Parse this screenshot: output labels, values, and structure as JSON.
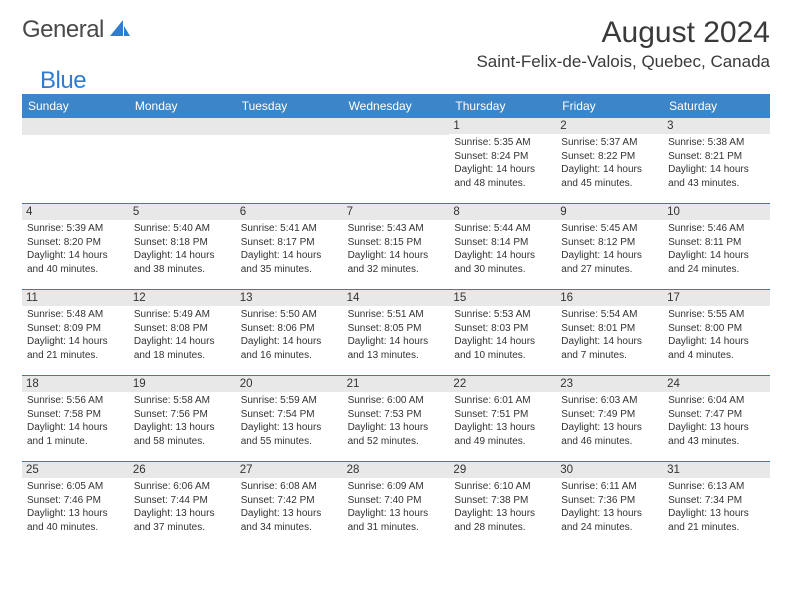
{
  "logo": {
    "general": "General",
    "blue": "Blue"
  },
  "title": "August 2024",
  "location": "Saint-Felix-de-Valois, Quebec, Canada",
  "colors": {
    "header_bg": "#3c85c8",
    "header_fg": "#ffffff",
    "daynum_bg": "#e8e8e8",
    "separator": "#2f7dd0",
    "logo_blue": "#2f7dd0",
    "text": "#333333"
  },
  "day_headers": [
    "Sunday",
    "Monday",
    "Tuesday",
    "Wednesday",
    "Thursday",
    "Friday",
    "Saturday"
  ],
  "weeks": [
    [
      null,
      null,
      null,
      null,
      {
        "n": "1",
        "sr": "5:35 AM",
        "ss": "8:24 PM",
        "dl": "14 hours and 48 minutes."
      },
      {
        "n": "2",
        "sr": "5:37 AM",
        "ss": "8:22 PM",
        "dl": "14 hours and 45 minutes."
      },
      {
        "n": "3",
        "sr": "5:38 AM",
        "ss": "8:21 PM",
        "dl": "14 hours and 43 minutes."
      }
    ],
    [
      {
        "n": "4",
        "sr": "5:39 AM",
        "ss": "8:20 PM",
        "dl": "14 hours and 40 minutes."
      },
      {
        "n": "5",
        "sr": "5:40 AM",
        "ss": "8:18 PM",
        "dl": "14 hours and 38 minutes."
      },
      {
        "n": "6",
        "sr": "5:41 AM",
        "ss": "8:17 PM",
        "dl": "14 hours and 35 minutes."
      },
      {
        "n": "7",
        "sr": "5:43 AM",
        "ss": "8:15 PM",
        "dl": "14 hours and 32 minutes."
      },
      {
        "n": "8",
        "sr": "5:44 AM",
        "ss": "8:14 PM",
        "dl": "14 hours and 30 minutes."
      },
      {
        "n": "9",
        "sr": "5:45 AM",
        "ss": "8:12 PM",
        "dl": "14 hours and 27 minutes."
      },
      {
        "n": "10",
        "sr": "5:46 AM",
        "ss": "8:11 PM",
        "dl": "14 hours and 24 minutes."
      }
    ],
    [
      {
        "n": "11",
        "sr": "5:48 AM",
        "ss": "8:09 PM",
        "dl": "14 hours and 21 minutes."
      },
      {
        "n": "12",
        "sr": "5:49 AM",
        "ss": "8:08 PM",
        "dl": "14 hours and 18 minutes."
      },
      {
        "n": "13",
        "sr": "5:50 AM",
        "ss": "8:06 PM",
        "dl": "14 hours and 16 minutes."
      },
      {
        "n": "14",
        "sr": "5:51 AM",
        "ss": "8:05 PM",
        "dl": "14 hours and 13 minutes."
      },
      {
        "n": "15",
        "sr": "5:53 AM",
        "ss": "8:03 PM",
        "dl": "14 hours and 10 minutes."
      },
      {
        "n": "16",
        "sr": "5:54 AM",
        "ss": "8:01 PM",
        "dl": "14 hours and 7 minutes."
      },
      {
        "n": "17",
        "sr": "5:55 AM",
        "ss": "8:00 PM",
        "dl": "14 hours and 4 minutes."
      }
    ],
    [
      {
        "n": "18",
        "sr": "5:56 AM",
        "ss": "7:58 PM",
        "dl": "14 hours and 1 minute."
      },
      {
        "n": "19",
        "sr": "5:58 AM",
        "ss": "7:56 PM",
        "dl": "13 hours and 58 minutes."
      },
      {
        "n": "20",
        "sr": "5:59 AM",
        "ss": "7:54 PM",
        "dl": "13 hours and 55 minutes."
      },
      {
        "n": "21",
        "sr": "6:00 AM",
        "ss": "7:53 PM",
        "dl": "13 hours and 52 minutes."
      },
      {
        "n": "22",
        "sr": "6:01 AM",
        "ss": "7:51 PM",
        "dl": "13 hours and 49 minutes."
      },
      {
        "n": "23",
        "sr": "6:03 AM",
        "ss": "7:49 PM",
        "dl": "13 hours and 46 minutes."
      },
      {
        "n": "24",
        "sr": "6:04 AM",
        "ss": "7:47 PM",
        "dl": "13 hours and 43 minutes."
      }
    ],
    [
      {
        "n": "25",
        "sr": "6:05 AM",
        "ss": "7:46 PM",
        "dl": "13 hours and 40 minutes."
      },
      {
        "n": "26",
        "sr": "6:06 AM",
        "ss": "7:44 PM",
        "dl": "13 hours and 37 minutes."
      },
      {
        "n": "27",
        "sr": "6:08 AM",
        "ss": "7:42 PM",
        "dl": "13 hours and 34 minutes."
      },
      {
        "n": "28",
        "sr": "6:09 AM",
        "ss": "7:40 PM",
        "dl": "13 hours and 31 minutes."
      },
      {
        "n": "29",
        "sr": "6:10 AM",
        "ss": "7:38 PM",
        "dl": "13 hours and 28 minutes."
      },
      {
        "n": "30",
        "sr": "6:11 AM",
        "ss": "7:36 PM",
        "dl": "13 hours and 24 minutes."
      },
      {
        "n": "31",
        "sr": "6:13 AM",
        "ss": "7:34 PM",
        "dl": "13 hours and 21 minutes."
      }
    ]
  ],
  "labels": {
    "sunrise": "Sunrise:",
    "sunset": "Sunset:",
    "daylight": "Daylight:"
  }
}
